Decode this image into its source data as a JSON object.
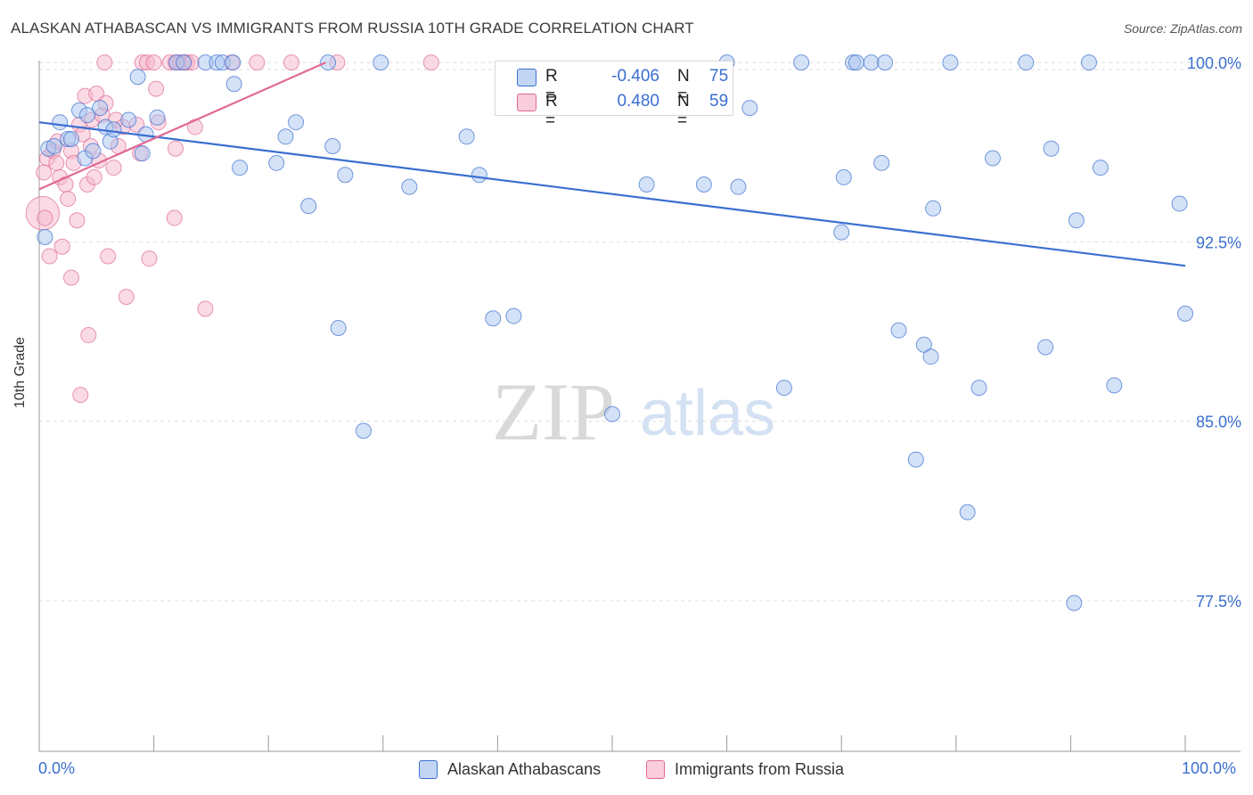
{
  "header": {
    "title": "ALASKAN ATHABASCAN VS IMMIGRANTS FROM RUSSIA 10TH GRADE CORRELATION CHART",
    "source": "Source: ZipAtlas.com"
  },
  "legend": {
    "blue": {
      "r_label": "R =",
      "r_value": "-0.406",
      "n_label": "N =",
      "n_value": "75"
    },
    "pink": {
      "r_label": "R =",
      "r_value": "0.480",
      "n_label": "N =",
      "n_value": "59"
    }
  },
  "colors": {
    "blue": "#3a6fd0",
    "blue_fill": "#aac6f0",
    "pink": "#e06a95",
    "pink_fill": "#f5b8cc",
    "grid": "#dddddd",
    "axis_text": "#3a6fd0"
  },
  "watermark": {
    "zip": "ZIP",
    "atlas": "atlas"
  },
  "chart_data": {
    "type": "scatter",
    "title": "ALASKAN ATHABASCAN VS IMMIGRANTS FROM RUSSIA 10TH GRADE CORRELATION CHART",
    "xlabel": "",
    "ylabel": "10th Grade",
    "xlim": [
      0,
      100
    ],
    "ylim": [
      71.2,
      100.6
    ],
    "x_tick_labels": [
      "0.0%",
      "100.0%"
    ],
    "y_ticks": [
      100.0,
      92.5,
      85.0,
      77.5
    ],
    "y_tick_labels": [
      "100.0%",
      "92.5%",
      "85.0%",
      "77.5%"
    ],
    "grid": true,
    "legend_position": "top-center",
    "series": [
      {
        "name": "Alaskan Athabascans",
        "color": "#3a6fd0",
        "r": "-0.406",
        "n": "75",
        "trend": {
          "x": [
            0,
            100
          ],
          "y": [
            97.5,
            91.5
          ]
        },
        "points": [
          {
            "x": 0.5,
            "y": 92.7
          },
          {
            "x": 0.8,
            "y": 96.4
          },
          {
            "x": 1.3,
            "y": 96.5
          },
          {
            "x": 1.8,
            "y": 97.5
          },
          {
            "x": 2.5,
            "y": 96.8
          },
          {
            "x": 2.8,
            "y": 96.8
          },
          {
            "x": 3.5,
            "y": 98.0
          },
          {
            "x": 4.0,
            "y": 96.0
          },
          {
            "x": 4.2,
            "y": 97.8
          },
          {
            "x": 4.7,
            "y": 96.3
          },
          {
            "x": 5.3,
            "y": 98.1
          },
          {
            "x": 5.8,
            "y": 97.3
          },
          {
            "x": 6.2,
            "y": 96.7
          },
          {
            "x": 6.5,
            "y": 97.2
          },
          {
            "x": 7.8,
            "y": 97.6
          },
          {
            "x": 8.6,
            "y": 99.4
          },
          {
            "x": 9.0,
            "y": 96.2
          },
          {
            "x": 9.3,
            "y": 97.0
          },
          {
            "x": 10.3,
            "y": 97.7
          },
          {
            "x": 12.0,
            "y": 100.0
          },
          {
            "x": 12.6,
            "y": 100.0
          },
          {
            "x": 14.5,
            "y": 100.0
          },
          {
            "x": 15.5,
            "y": 100.0
          },
          {
            "x": 16.0,
            "y": 100.0
          },
          {
            "x": 16.9,
            "y": 100.0
          },
          {
            "x": 17.0,
            "y": 99.1
          },
          {
            "x": 17.5,
            "y": 95.6
          },
          {
            "x": 20.7,
            "y": 95.8
          },
          {
            "x": 21.5,
            "y": 96.9
          },
          {
            "x": 22.4,
            "y": 97.5
          },
          {
            "x": 23.5,
            "y": 94.0
          },
          {
            "x": 25.2,
            "y": 100.0
          },
          {
            "x": 25.6,
            "y": 96.5
          },
          {
            "x": 26.1,
            "y": 88.9
          },
          {
            "x": 26.7,
            "y": 95.3
          },
          {
            "x": 28.3,
            "y": 84.6
          },
          {
            "x": 29.8,
            "y": 100.0
          },
          {
            "x": 32.3,
            "y": 94.8
          },
          {
            "x": 37.3,
            "y": 96.9
          },
          {
            "x": 38.4,
            "y": 95.3
          },
          {
            "x": 39.6,
            "y": 89.3
          },
          {
            "x": 41.4,
            "y": 89.4
          },
          {
            "x": 50.0,
            "y": 85.3
          },
          {
            "x": 53.0,
            "y": 94.9
          },
          {
            "x": 58.0,
            "y": 94.9
          },
          {
            "x": 60.0,
            "y": 100.0
          },
          {
            "x": 61.0,
            "y": 94.8
          },
          {
            "x": 62.0,
            "y": 98.1
          },
          {
            "x": 65.0,
            "y": 86.4
          },
          {
            "x": 66.5,
            "y": 100.0
          },
          {
            "x": 70.0,
            "y": 92.9
          },
          {
            "x": 70.2,
            "y": 95.2
          },
          {
            "x": 71.0,
            "y": 100.0
          },
          {
            "x": 71.3,
            "y": 100.0
          },
          {
            "x": 72.6,
            "y": 100.0
          },
          {
            "x": 73.8,
            "y": 100.0
          },
          {
            "x": 73.5,
            "y": 95.8
          },
          {
            "x": 75.0,
            "y": 88.8
          },
          {
            "x": 76.5,
            "y": 83.4
          },
          {
            "x": 77.2,
            "y": 88.2
          },
          {
            "x": 77.8,
            "y": 87.7
          },
          {
            "x": 78.0,
            "y": 93.9
          },
          {
            "x": 79.5,
            "y": 100.0
          },
          {
            "x": 81.0,
            "y": 81.2
          },
          {
            "x": 82.0,
            "y": 86.4
          },
          {
            "x": 83.2,
            "y": 96.0
          },
          {
            "x": 86.1,
            "y": 100.0
          },
          {
            "x": 87.8,
            "y": 88.1
          },
          {
            "x": 88.3,
            "y": 96.4
          },
          {
            "x": 90.3,
            "y": 77.4
          },
          {
            "x": 90.5,
            "y": 93.4
          },
          {
            "x": 91.6,
            "y": 100.0
          },
          {
            "x": 92.6,
            "y": 95.6
          },
          {
            "x": 93.8,
            "y": 86.5
          },
          {
            "x": 99.5,
            "y": 94.1
          },
          {
            "x": 100.0,
            "y": 89.5
          }
        ]
      },
      {
        "name": "Immigrants from Russia",
        "color": "#e06a95",
        "r": "0.480",
        "n": "59",
        "trend": {
          "x": [
            0,
            25
          ],
          "y": [
            94.7,
            100.0
          ]
        },
        "points": [
          {
            "x": 0.3,
            "y": 93.7,
            "s": 2.2
          },
          {
            "x": 0.4,
            "y": 95.4
          },
          {
            "x": 0.5,
            "y": 93.5
          },
          {
            "x": 0.7,
            "y": 96.0
          },
          {
            "x": 0.9,
            "y": 91.9
          },
          {
            "x": 1.2,
            "y": 96.3
          },
          {
            "x": 1.5,
            "y": 95.8
          },
          {
            "x": 1.6,
            "y": 96.7
          },
          {
            "x": 1.8,
            "y": 95.2
          },
          {
            "x": 2.0,
            "y": 92.3
          },
          {
            "x": 2.3,
            "y": 94.9
          },
          {
            "x": 2.5,
            "y": 94.3
          },
          {
            "x": 2.8,
            "y": 96.3
          },
          {
            "x": 3.0,
            "y": 95.8
          },
          {
            "x": 2.8,
            "y": 91.0
          },
          {
            "x": 3.3,
            "y": 93.4
          },
          {
            "x": 3.5,
            "y": 97.4
          },
          {
            "x": 3.6,
            "y": 86.1
          },
          {
            "x": 3.8,
            "y": 97.0
          },
          {
            "x": 4.0,
            "y": 98.6
          },
          {
            "x": 4.2,
            "y": 94.9
          },
          {
            "x": 4.5,
            "y": 96.5
          },
          {
            "x": 4.3,
            "y": 88.6
          },
          {
            "x": 4.6,
            "y": 97.6
          },
          {
            "x": 4.8,
            "y": 95.2
          },
          {
            "x": 5.0,
            "y": 98.7
          },
          {
            "x": 5.2,
            "y": 95.9
          },
          {
            "x": 5.5,
            "y": 97.8
          },
          {
            "x": 5.8,
            "y": 98.3
          },
          {
            "x": 5.7,
            "y": 100.0
          },
          {
            "x": 6.0,
            "y": 91.9
          },
          {
            "x": 6.5,
            "y": 95.6
          },
          {
            "x": 6.7,
            "y": 97.6
          },
          {
            "x": 6.9,
            "y": 96.5
          },
          {
            "x": 7.3,
            "y": 97.3
          },
          {
            "x": 7.6,
            "y": 90.2
          },
          {
            "x": 8.5,
            "y": 97.4
          },
          {
            "x": 8.8,
            "y": 96.2
          },
          {
            "x": 9.0,
            "y": 100.0
          },
          {
            "x": 9.4,
            "y": 100.0
          },
          {
            "x": 9.6,
            "y": 91.8
          },
          {
            "x": 10.0,
            "y": 100.0
          },
          {
            "x": 10.2,
            "y": 98.9
          },
          {
            "x": 10.4,
            "y": 97.5
          },
          {
            "x": 11.4,
            "y": 100.0
          },
          {
            "x": 11.9,
            "y": 100.0
          },
          {
            "x": 11.8,
            "y": 93.5
          },
          {
            "x": 11.9,
            "y": 96.4
          },
          {
            "x": 12.3,
            "y": 100.0
          },
          {
            "x": 12.7,
            "y": 100.0
          },
          {
            "x": 12.9,
            "y": 100.0
          },
          {
            "x": 13.3,
            "y": 100.0
          },
          {
            "x": 13.6,
            "y": 97.3
          },
          {
            "x": 14.5,
            "y": 89.7
          },
          {
            "x": 16.8,
            "y": 100.0
          },
          {
            "x": 19.0,
            "y": 100.0
          },
          {
            "x": 22.0,
            "y": 100.0
          },
          {
            "x": 26.0,
            "y": 100.0
          },
          {
            "x": 34.2,
            "y": 100.0
          }
        ]
      }
    ]
  },
  "bottom_legend": [
    {
      "label": "Alaskan Athabascans"
    },
    {
      "label": "Immigrants from Russia"
    }
  ]
}
